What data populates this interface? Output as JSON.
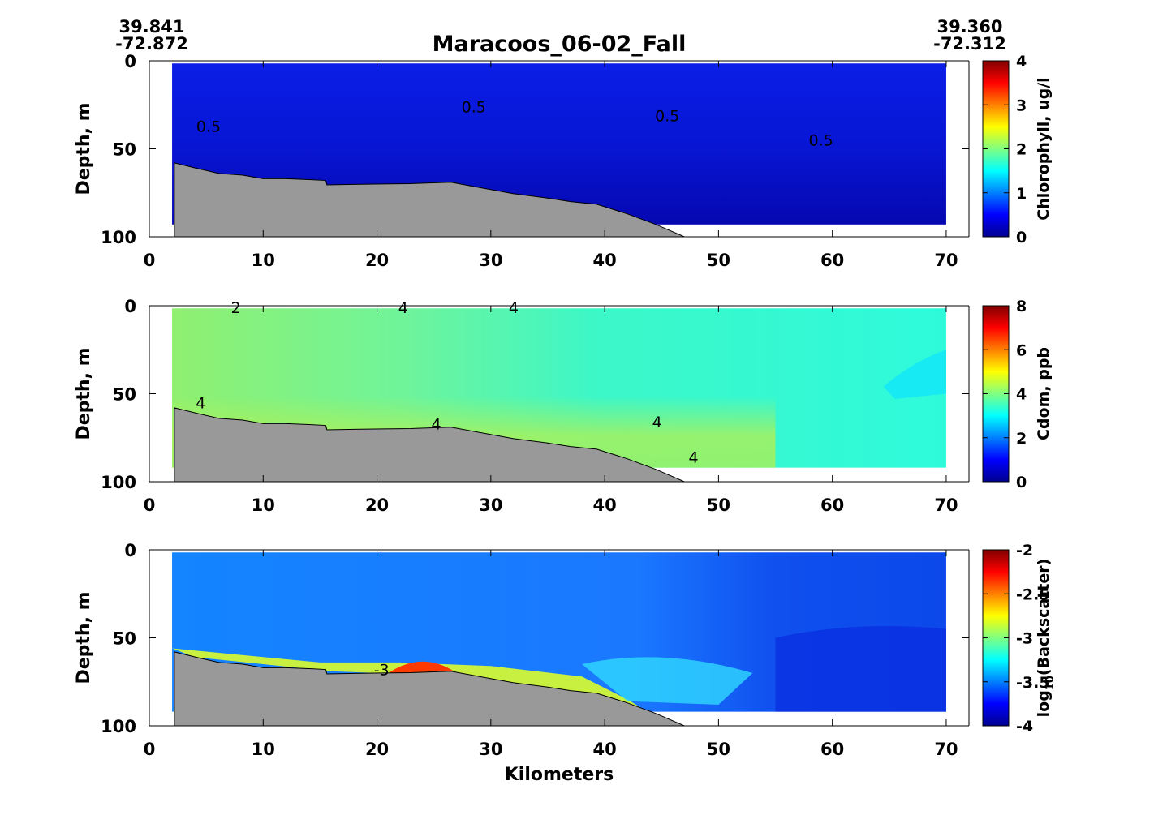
{
  "title": "Maracoos_06-02_Fall",
  "start_coords": {
    "lat": "39.841",
    "lon": "-72.872"
  },
  "end_coords": {
    "lat": "39.360",
    "lon": "-72.312"
  },
  "chart_data": [
    {
      "type": "heatmap",
      "variable": "chlorophyll",
      "xlabel": "",
      "ylabel": "Depth, m",
      "colorbar_label": "Chlorophyll, ug/l",
      "xlim": [
        0,
        72
      ],
      "ylim": [
        100,
        0
      ],
      "x_ticks": [
        0,
        10,
        20,
        30,
        40,
        50,
        60,
        70
      ],
      "y_ticks": [
        0,
        50,
        100
      ],
      "colorbar_range": [
        0,
        4
      ],
      "colorbar_ticks": [
        "0",
        "1",
        "2",
        "3",
        "4"
      ],
      "colormap": "jet",
      "contour_labels": [
        {
          "text": "0.5",
          "x": 5.2,
          "y": 37
        },
        {
          "text": "0.5",
          "x": 28.5,
          "y": 26
        },
        {
          "text": "0.5",
          "x": 45.5,
          "y": 31
        },
        {
          "text": "0.5",
          "x": 59,
          "y": 45
        }
      ],
      "data_extent": {
        "x_start": 2,
        "x_end": 70,
        "bottom_depth": 93
      },
      "background_level": 0.2
    },
    {
      "type": "heatmap",
      "variable": "cdom",
      "xlabel": "",
      "ylabel": "Depth, m",
      "colorbar_label": "Cdom, ppb",
      "xlim": [
        0,
        72
      ],
      "ylim": [
        100,
        0
      ],
      "x_ticks": [
        0,
        10,
        20,
        30,
        40,
        50,
        60,
        70
      ],
      "y_ticks": [
        0,
        50,
        100
      ],
      "colorbar_range": [
        0,
        8
      ],
      "colorbar_ticks": [
        "0",
        "2",
        "4",
        "6",
        "8"
      ],
      "colormap": "jet",
      "contour_labels": [
        {
          "text": "2",
          "x": 7.6,
          "y": 1
        },
        {
          "text": "4",
          "x": 22.3,
          "y": 1
        },
        {
          "text": "4",
          "x": 32,
          "y": 1
        },
        {
          "text": "4",
          "x": 4.5,
          "y": 55
        },
        {
          "text": "4",
          "x": 25.2,
          "y": 67
        },
        {
          "text": "4",
          "x": 44.6,
          "y": 66
        },
        {
          "text": "4",
          "x": 47.8,
          "y": 86
        }
      ],
      "data_extent": {
        "x_start": 2,
        "x_end": 70,
        "bottom_depth": 92
      },
      "background_level": 3.6
    },
    {
      "type": "heatmap",
      "variable": "backscatter",
      "xlabel": "Kilometers",
      "ylabel": "Depth, m",
      "colorbar_label": "log10(Backscatter)",
      "xlim": [
        0,
        72
      ],
      "ylim": [
        100,
        0
      ],
      "x_ticks": [
        0,
        10,
        20,
        30,
        40,
        50,
        60,
        70
      ],
      "y_ticks": [
        0,
        50,
        100
      ],
      "colorbar_range": [
        -4,
        -2
      ],
      "colorbar_ticks": [
        "-4",
        "-3.5",
        "-3",
        "-2.5",
        "-2"
      ],
      "colormap": "jet",
      "contour_labels": [
        {
          "text": "-3",
          "x": 20.4,
          "y": 68
        }
      ],
      "data_extent": {
        "x_start": 2,
        "x_end": 70,
        "bottom_depth": 92
      },
      "background_level": -3.45
    }
  ],
  "bathymetry": {
    "color": "#999999",
    "profile": [
      [
        2.2,
        58
      ],
      [
        4.1,
        61
      ],
      [
        6.1,
        64
      ],
      [
        8.2,
        65
      ],
      [
        10,
        67
      ],
      [
        12,
        67
      ],
      [
        14,
        67.5
      ],
      [
        15.5,
        68
      ],
      [
        15.6,
        70.5
      ],
      [
        18,
        70.2
      ],
      [
        20.5,
        70
      ],
      [
        23,
        69.8
      ],
      [
        26.5,
        69
      ],
      [
        29,
        72
      ],
      [
        32,
        75.5
      ],
      [
        35,
        78
      ],
      [
        37,
        80
      ],
      [
        39.3,
        81.5
      ],
      [
        42,
        87
      ],
      [
        44.5,
        93
      ],
      [
        47,
        100
      ]
    ]
  }
}
